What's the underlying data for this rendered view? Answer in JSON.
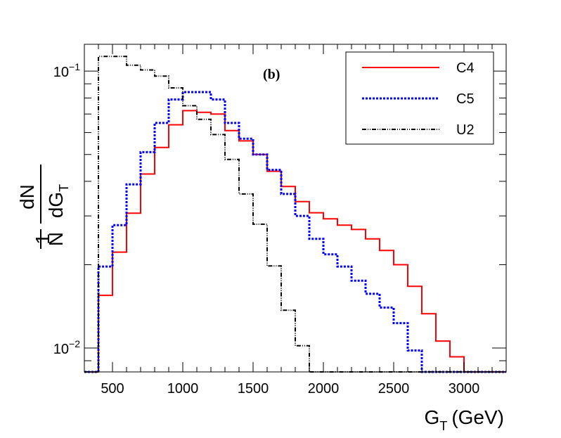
{
  "chart_data": {
    "type": "histogram",
    "panel_label": "(b)",
    "xlabel": "G",
    "xlabel_sub": "T",
    "xlabel_unit": "(GeV)",
    "ylabel_num": "1",
    "ylabel_den": "N",
    "ylabel_frac_num": "dN",
    "ylabel_frac_den": "dG",
    "ylabel_frac_den_sub": "T",
    "xlim": [
      300,
      3300
    ],
    "ylim": [
      0.0082,
      0.125
    ],
    "yscale": "log",
    "x_ticks": [
      500,
      1000,
      1500,
      2000,
      2500,
      3000
    ],
    "x_tick_labels": [
      "500",
      "1000",
      "1500",
      "2000",
      "2500",
      "3000"
    ],
    "y_tick_labels": [
      {
        "value": 0.1,
        "base": "10",
        "exp": "−1"
      },
      {
        "value": 0.01,
        "base": "10",
        "exp": "−2"
      }
    ],
    "bin_edges": [
      300,
      400,
      500,
      600,
      700,
      800,
      900,
      1000,
      1100,
      1200,
      1300,
      1400,
      1500,
      1600,
      1700,
      1800,
      1900,
      2000,
      2100,
      2200,
      2300,
      2400,
      2500,
      2600,
      2700,
      2800,
      2900,
      3000,
      3100,
      3200,
      3300
    ],
    "series": [
      {
        "name": "C4",
        "color": "#ff0000",
        "dash": "solid",
        "values": [
          0,
          0.0155,
          0.0222,
          0.0307,
          0.0425,
          0.053,
          0.064,
          0.072,
          0.071,
          0.07,
          0.061,
          0.056,
          0.05,
          0.0435,
          0.0383,
          0.0338,
          0.0308,
          0.0293,
          0.0278,
          0.0268,
          0.0248,
          0.0225,
          0.02,
          0.0167,
          0.0133,
          0.0106,
          0.0093,
          0.0082,
          0.0082,
          0.0082
        ]
      },
      {
        "name": "C5",
        "color": "#0000ff",
        "dash": "dotted",
        "values": [
          0,
          0.0197,
          0.0278,
          0.039,
          0.051,
          0.065,
          0.079,
          0.084,
          0.084,
          0.079,
          0.065,
          0.057,
          0.05,
          0.044,
          0.036,
          0.03,
          0.0248,
          0.0218,
          0.0197,
          0.0175,
          0.0157,
          0.014,
          0.0123,
          0.0098,
          0.0082,
          0.0082,
          0.0082,
          0.0082,
          0.0082,
          0.0082
        ]
      },
      {
        "name": "U2",
        "color": "#000000",
        "dash": "dashdot",
        "values": [
          0,
          0.113,
          0.113,
          0.105,
          0.101,
          0.096,
          0.087,
          0.075,
          0.067,
          0.059,
          0.048,
          0.036,
          0.028,
          0.0198,
          0.0137,
          0.0102,
          0.0082,
          0.0082,
          0.0082,
          0.0082,
          0.0082,
          0.0082,
          0.0082,
          0.0082,
          0.0082,
          0.0082,
          0.0082,
          0.0082,
          0.0082,
          0.0082
        ]
      }
    ],
    "legend": {
      "position": "top-right",
      "entries": [
        "C4",
        "C5",
        "U2"
      ]
    }
  }
}
